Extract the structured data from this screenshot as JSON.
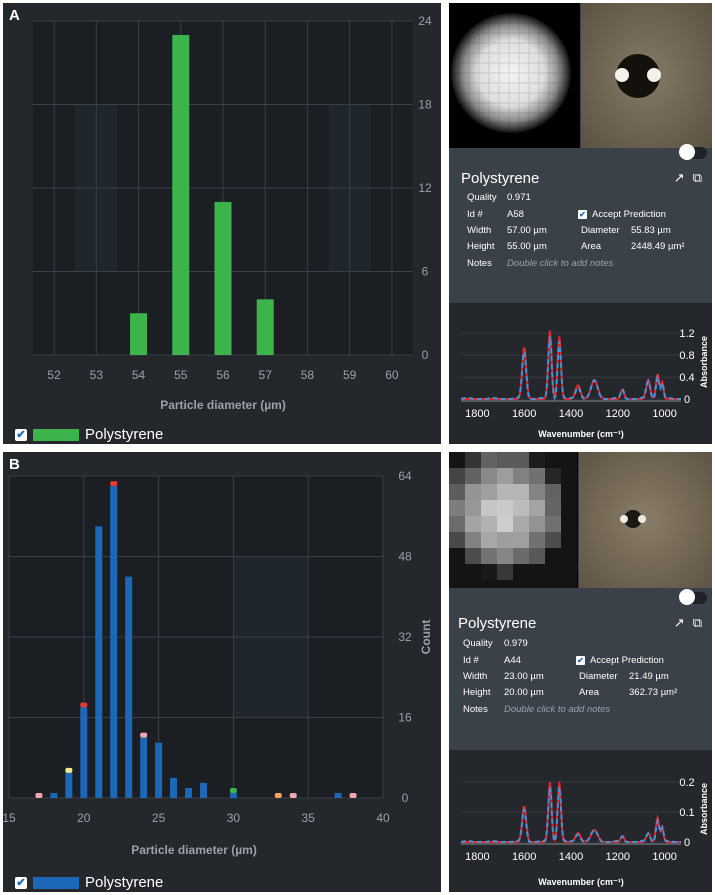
{
  "panels": [
    {
      "letter": "A",
      "legend_label": "Polystyrene",
      "chart_data": {
        "type": "bar",
        "title": "",
        "xlabel": "Particle diameter (µm)",
        "ylabel": "",
        "xlim": [
          51.5,
          60.5
        ],
        "ylim": [
          0,
          24
        ],
        "x_ticks": [
          52,
          53,
          54,
          55,
          56,
          57,
          58,
          59,
          60
        ],
        "y_ticks": [
          0,
          6,
          12,
          18,
          24
        ],
        "series": [
          {
            "name": "Polystyrene",
            "color": "#3cb44b",
            "x": [
              54,
              55,
              56,
              57
            ],
            "values": [
              3,
              23,
              11,
              4
            ]
          }
        ]
      },
      "particle": {
        "title": "Polystyrene",
        "quality_label": "Quality",
        "quality": "0.971",
        "id_label": "Id #",
        "id": "A58",
        "width_label": "Width",
        "width": "57.00 µm",
        "height_label": "Height",
        "height": "55.00 µm",
        "notes_label": "Notes",
        "notes_placeholder": "Double click to add notes",
        "accept_label": "Accept Prediction",
        "diameter_label": "Diameter",
        "diameter": "55.83 µm",
        "area_label": "Area",
        "area": "2448.49 µm²"
      },
      "spectrum": {
        "xlabel": "Wavenumber (cm⁻¹)",
        "ylabel": "Absorbance",
        "x_ticks": [
          1800,
          1600,
          1400,
          1200,
          1000
        ],
        "y_ticks": [
          0,
          0.4,
          0.8,
          1.2
        ],
        "y_tick_labels": [
          "0",
          "0.4",
          "0.8",
          "1.2"
        ],
        "xlim": [
          1870,
          930
        ],
        "ylim": [
          0,
          1.35
        ],
        "peaks": [
          {
            "x": 1600,
            "h": 0.95,
            "w": 12
          },
          {
            "x": 1490,
            "h": 1.25,
            "w": 10
          },
          {
            "x": 1450,
            "h": 1.15,
            "w": 10
          },
          {
            "x": 1370,
            "h": 0.25,
            "w": 15
          },
          {
            "x": 1300,
            "h": 0.35,
            "w": 20
          },
          {
            "x": 1180,
            "h": 0.18,
            "w": 10
          },
          {
            "x": 1070,
            "h": 0.35,
            "w": 12
          },
          {
            "x": 1030,
            "h": 0.45,
            "w": 10
          },
          {
            "x": 1010,
            "h": 0.3,
            "w": 8
          }
        ]
      }
    },
    {
      "letter": "B",
      "legend_label": "Polystyrene",
      "chart_data": {
        "type": "bar",
        "title": "",
        "xlabel": "Particle diameter (µm)",
        "ylabel": "Count",
        "xlim": [
          15,
          40
        ],
        "ylim": [
          0,
          64
        ],
        "x_ticks": [
          15,
          20,
          25,
          30,
          35,
          40
        ],
        "y_ticks": [
          0,
          16,
          32,
          48,
          64
        ],
        "series": [
          {
            "name": "Polystyrene",
            "color": "#1c68b8",
            "x": [
              18,
              19,
              20,
              21,
              22,
              23,
              24,
              25,
              26,
              27,
              28,
              30,
              37
            ],
            "values": [
              1,
              5,
              18,
              54,
              62,
              44,
              12,
              11,
              4,
              2,
              3,
              1,
              1
            ]
          }
        ],
        "markers": [
          {
            "x": 17,
            "y": 0,
            "color": "#f4a6b0"
          },
          {
            "x": 19,
            "y": 5,
            "color": "#f0e68c"
          },
          {
            "x": 20,
            "y": 18,
            "color": "#e53935"
          },
          {
            "x": 22,
            "y": 62,
            "color": "#e53935"
          },
          {
            "x": 24,
            "y": 12,
            "color": "#f4a6b0"
          },
          {
            "x": 30,
            "y": 1,
            "color": "#3cb44b"
          },
          {
            "x": 33,
            "y": 0,
            "color": "#f4a460"
          },
          {
            "x": 34,
            "y": 0,
            "color": "#f4a6b0"
          },
          {
            "x": 38,
            "y": 0,
            "color": "#f4a6b0"
          }
        ]
      },
      "particle": {
        "title": "Polystyrene",
        "quality_label": "Quality",
        "quality": "0.979",
        "id_label": "Id #",
        "id": "A44",
        "width_label": "Width",
        "width": "23.00 µm",
        "height_label": "Height",
        "height": "20.00 µm",
        "notes_label": "Notes",
        "notes_placeholder": "Double click to add notes",
        "accept_label": "Accept Prediction",
        "diameter_label": "Diameter",
        "diameter": "21.49 µm",
        "area_label": "Area",
        "area": "362.73 µm²"
      },
      "spectrum": {
        "xlabel": "Wavenumber (cm⁻¹)",
        "ylabel": "Absorbance",
        "x_ticks": [
          1800,
          1600,
          1400,
          1200,
          1000
        ],
        "y_ticks": [
          0,
          0.1,
          0.2
        ],
        "y_tick_labels": [
          "0",
          "0.1",
          "0.2"
        ],
        "xlim": [
          1870,
          930
        ],
        "ylim": [
          0,
          0.22
        ],
        "peaks": [
          {
            "x": 1600,
            "h": 0.12,
            "w": 12
          },
          {
            "x": 1490,
            "h": 0.2,
            "w": 10
          },
          {
            "x": 1450,
            "h": 0.2,
            "w": 10
          },
          {
            "x": 1370,
            "h": 0.03,
            "w": 15
          },
          {
            "x": 1300,
            "h": 0.04,
            "w": 20
          },
          {
            "x": 1180,
            "h": 0.02,
            "w": 10
          },
          {
            "x": 1070,
            "h": 0.03,
            "w": 12
          },
          {
            "x": 1030,
            "h": 0.08,
            "w": 10
          },
          {
            "x": 1010,
            "h": 0.05,
            "w": 8
          }
        ]
      }
    }
  ]
}
